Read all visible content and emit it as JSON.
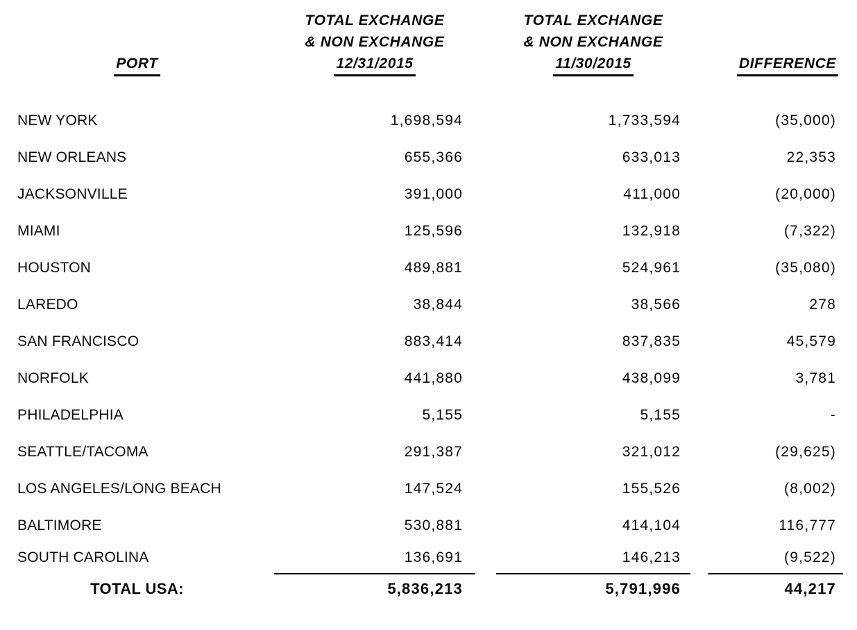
{
  "document": {
    "header": {
      "port_label": "PORT",
      "col_dec": {
        "line1": "TOTAL EXCHANGE",
        "line2": "& NON EXCHANGE",
        "date": "12/31/2015"
      },
      "col_nov": {
        "line1": "TOTAL EXCHANGE",
        "line2": "& NON EXCHANGE",
        "date": "11/30/2015"
      },
      "difference_label": "DIFFERENCE"
    },
    "rows": [
      {
        "port": "NEW YORK",
        "dec": "1,698,594",
        "nov": "1,733,594",
        "diff": "(35,000)"
      },
      {
        "port": "NEW ORLEANS",
        "dec": "655,366",
        "nov": "633,013",
        "diff": "22,353"
      },
      {
        "port": "JACKSONVILLE",
        "dec": "391,000",
        "nov": "411,000",
        "diff": "(20,000)"
      },
      {
        "port": "MIAMI",
        "dec": "125,596",
        "nov": "132,918",
        "diff": "(7,322)"
      },
      {
        "port": "HOUSTON",
        "dec": "489,881",
        "nov": "524,961",
        "diff": "(35,080)"
      },
      {
        "port": "LAREDO",
        "dec": "38,844",
        "nov": "38,566",
        "diff": "278"
      },
      {
        "port": "SAN FRANCISCO",
        "dec": "883,414",
        "nov": "837,835",
        "diff": "45,579"
      },
      {
        "port": "NORFOLK",
        "dec": "441,880",
        "nov": "438,099",
        "diff": "3,781"
      },
      {
        "port": "PHILADELPHIA",
        "dec": "5,155",
        "nov": "5,155",
        "diff": "-"
      },
      {
        "port": "SEATTLE/TACOMA",
        "dec": "291,387",
        "nov": "321,012",
        "diff": "(29,625)"
      },
      {
        "port": "LOS ANGELES/LONG BEACH",
        "dec": "147,524",
        "nov": "155,526",
        "diff": "(8,002)"
      },
      {
        "port": "BALTIMORE",
        "dec": "530,881",
        "nov": "414,104",
        "diff": "116,777"
      },
      {
        "port": "SOUTH CAROLINA",
        "dec": "136,691",
        "nov": "146,213",
        "diff": "(9,522)"
      }
    ],
    "total": {
      "label": "TOTAL USA:",
      "dec": "5,836,213",
      "nov": "5,791,996",
      "diff": "44,217"
    },
    "colors": {
      "text": "#0a0a0a",
      "background": "#ffffff",
      "rule": "#0a0a0a"
    }
  }
}
